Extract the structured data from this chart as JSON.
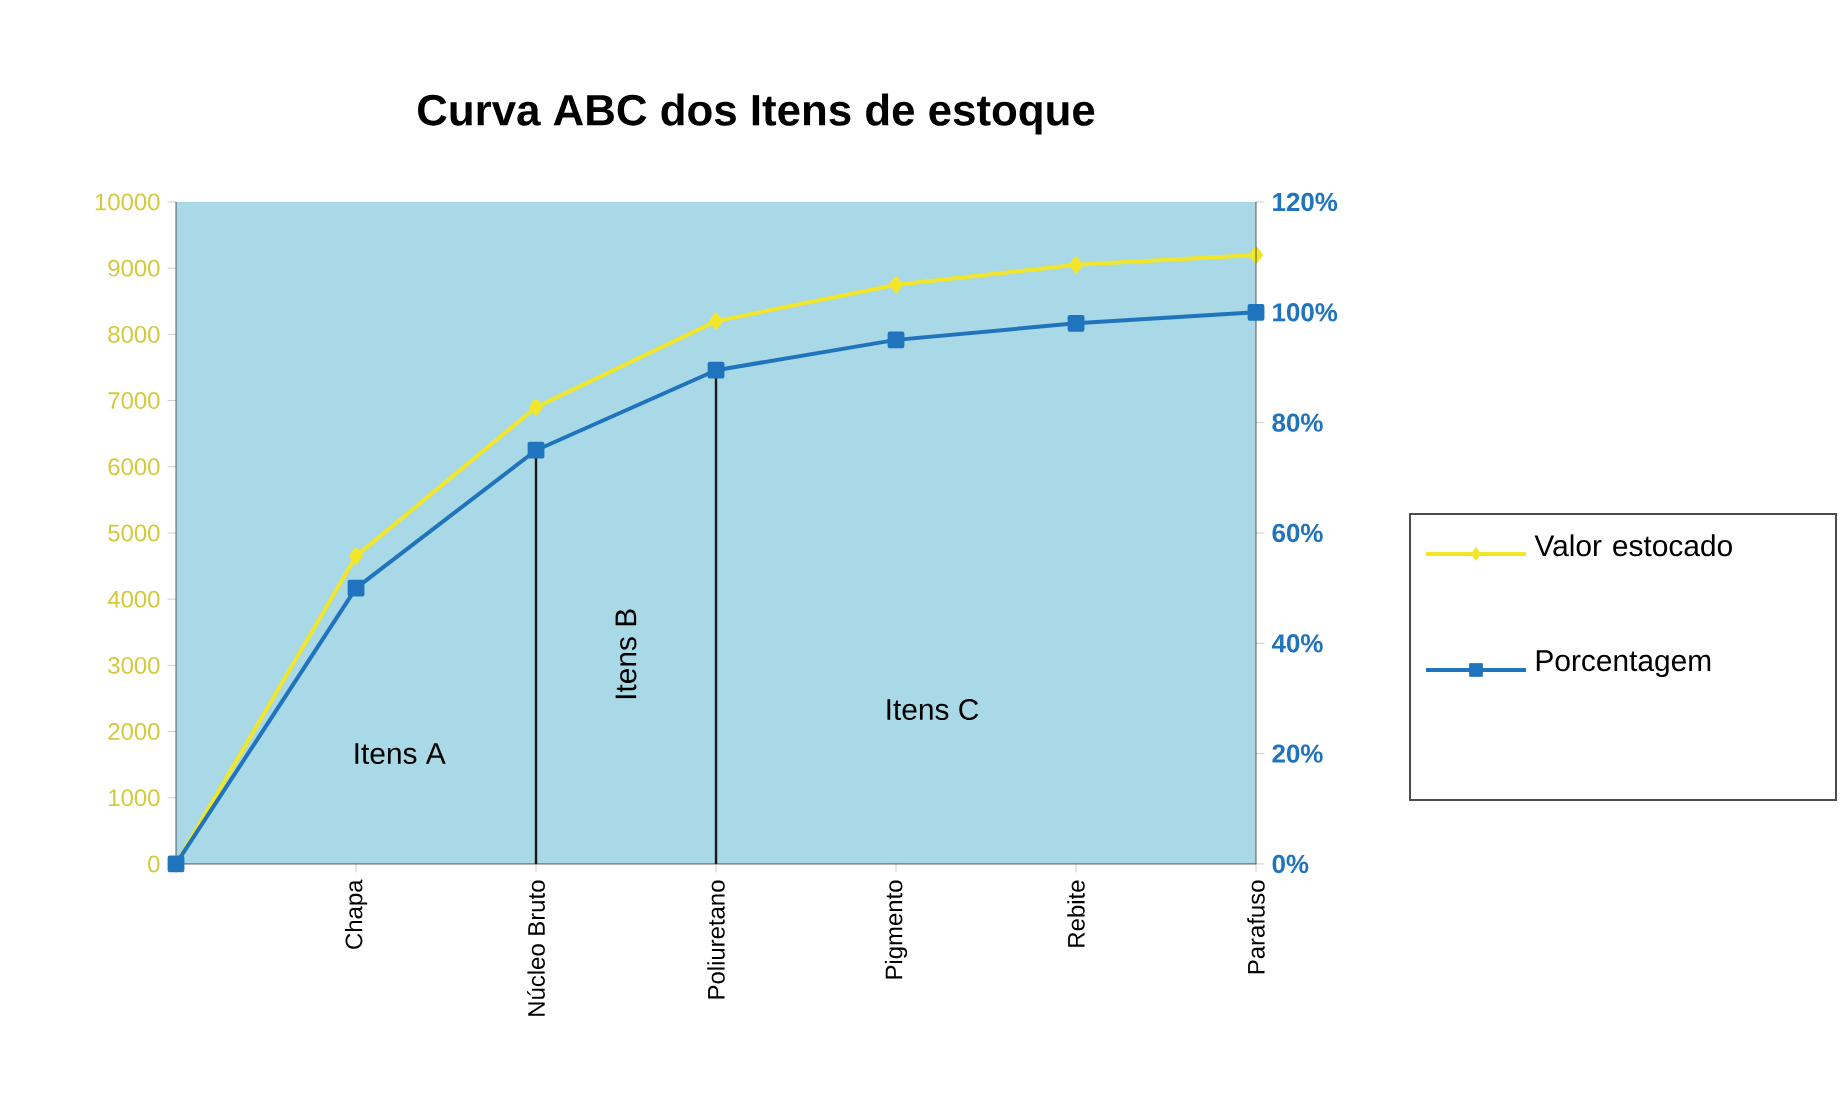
{
  "chart_data": {
    "type": "line",
    "title": "Curva ABC dos Itens de estoque",
    "categories": [
      null,
      "Chapa",
      "Núcleo Bruto",
      "Poliuretano",
      "Pigmento",
      "Rebite",
      "Parafuso"
    ],
    "series": [
      {
        "name": "Valor estocado",
        "color": "#f2e62a",
        "marker": "diamond",
        "values": [
          0,
          4650,
          6900,
          8200,
          8750,
          9050,
          9200
        ]
      },
      {
        "name": "Porcentagem",
        "color": "#1f74bd",
        "marker": "square",
        "axis": "y2",
        "values": [
          0,
          50,
          75,
          89.5,
          95,
          98,
          100
        ]
      }
    ],
    "ylim": [
      0,
      10000
    ],
    "yticks": [
      0,
      1000,
      2000,
      3000,
      4000,
      5000,
      6000,
      7000,
      8000,
      9000,
      10000
    ],
    "y2lim": [
      0,
      120
    ],
    "y2ticks": [
      {
        "value": 0,
        "label": "0%"
      },
      {
        "value": 20,
        "label": "20%"
      },
      {
        "value": 40,
        "label": "40%"
      },
      {
        "value": 60,
        "label": "60%"
      },
      {
        "value": 80,
        "label": "80%"
      },
      {
        "value": 100,
        "label": "100%"
      },
      {
        "value": 120,
        "label": "120%"
      }
    ],
    "ref_lines": [
      {
        "axis": "x",
        "value": "Núcleo Bruto",
        "color": "#1a1a1a"
      },
      {
        "axis": "x",
        "value": "Poliuretano",
        "color": "#1a1a1a"
      }
    ],
    "annotations": [
      "Itens A",
      "Itens B",
      "Itens C"
    ],
    "legend": "right"
  }
}
